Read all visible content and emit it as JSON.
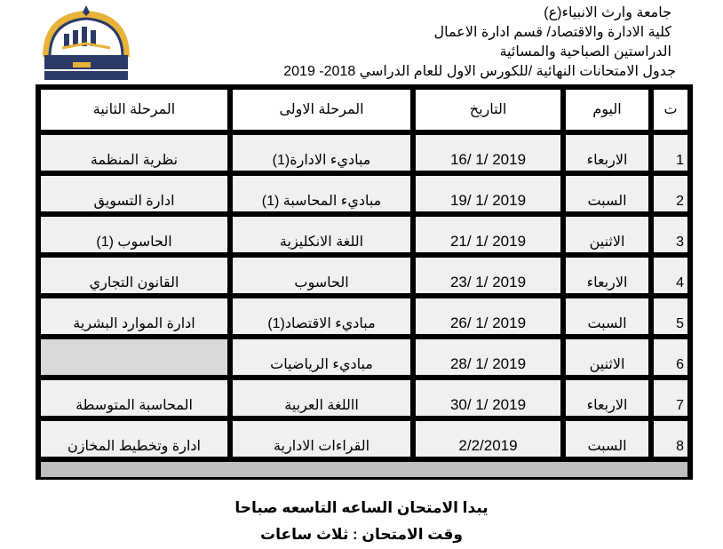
{
  "header": {
    "line1": "جامعة وارث الانبياء(ع)",
    "line2": "كلية الادارة والاقتصاد/ قسم ادارة الاعمال",
    "line3": "الدراستين الصباحية والمسائية",
    "line4": "جدول الامتحانات النهائية /للكورس الاول  للعام الدراسي 2018- 2019"
  },
  "logo": {
    "text": "جامعة وارث الانبياء 2017 كلية الادارة والاقتصاد UNIVERSITY OF WARITH AL-ANBIYAA"
  },
  "table": {
    "columns": [
      "ت",
      "اليوم",
      "التاريخ",
      "المرحلة الاولى",
      "المرحلة الثانية"
    ],
    "rows": [
      {
        "no": "1",
        "day": "الاربعاء",
        "date": "16/ 1/ 2019",
        "stage1": "مباديء الادارة(1)",
        "stage2": "نظرية المنظمة"
      },
      {
        "no": "2",
        "day": "السبت",
        "date": "19/ 1/ 2019",
        "stage1": "مباديء المحاسبة (1)",
        "stage2": "ادارة التسويق"
      },
      {
        "no": "3",
        "day": "الاثنين",
        "date": "21/ 1/ 2019",
        "stage1": "اللغة الانكليزية",
        "stage2": "الحاسوب (1)"
      },
      {
        "no": "4",
        "day": "الاربعاء",
        "date": "23/ 1/ 2019",
        "stage1": "الحاسوب",
        "stage2": "القانون التجاري"
      },
      {
        "no": "5",
        "day": "السبت",
        "date": "26/ 1/ 2019",
        "stage1": "مباديء الاقتصاد(1)",
        "stage2": "ادارة الموارد البشرية"
      },
      {
        "no": "6",
        "day": "الاثنين",
        "date": "28/ 1/ 2019",
        "stage1": "مباديء الرياضيات",
        "stage2": ""
      },
      {
        "no": "7",
        "day": "الاربعاء",
        "date": "30/ 1/ 2019",
        "stage1": "االلغة العربية",
        "stage2": "المحاسبة المتوسطة"
      },
      {
        "no": "8",
        "day": "السبت",
        "date": "2/2/2019",
        "stage1": "القراءات الادارية",
        "stage2": "ادارة وتخطيط المخازن"
      }
    ]
  },
  "notes": {
    "start": "يبدا الامتحان الساعه التاسعه صباحا",
    "duration": "وقت الامتحان :  ثلاث ساعات"
  }
}
